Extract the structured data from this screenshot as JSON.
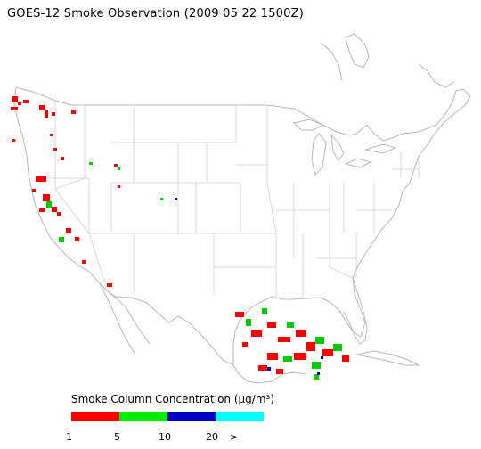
{
  "title": "GOES-12 Smoke Observation (2009 05 22  1500Z)",
  "legend": {
    "title": "Smoke Column Concentration (μg/m³)",
    "bins": [
      {
        "color": "#ff0000"
      },
      {
        "color": "#00ee00"
      },
      {
        "color": "#0000cc"
      },
      {
        "color": "#00ffff"
      }
    ],
    "ticks": [
      "1",
      "5",
      "10",
      "20",
      ">"
    ]
  },
  "map_colors": {
    "coastline": "#b8b8b8",
    "state_lines": "#cfcfcf"
  }
}
